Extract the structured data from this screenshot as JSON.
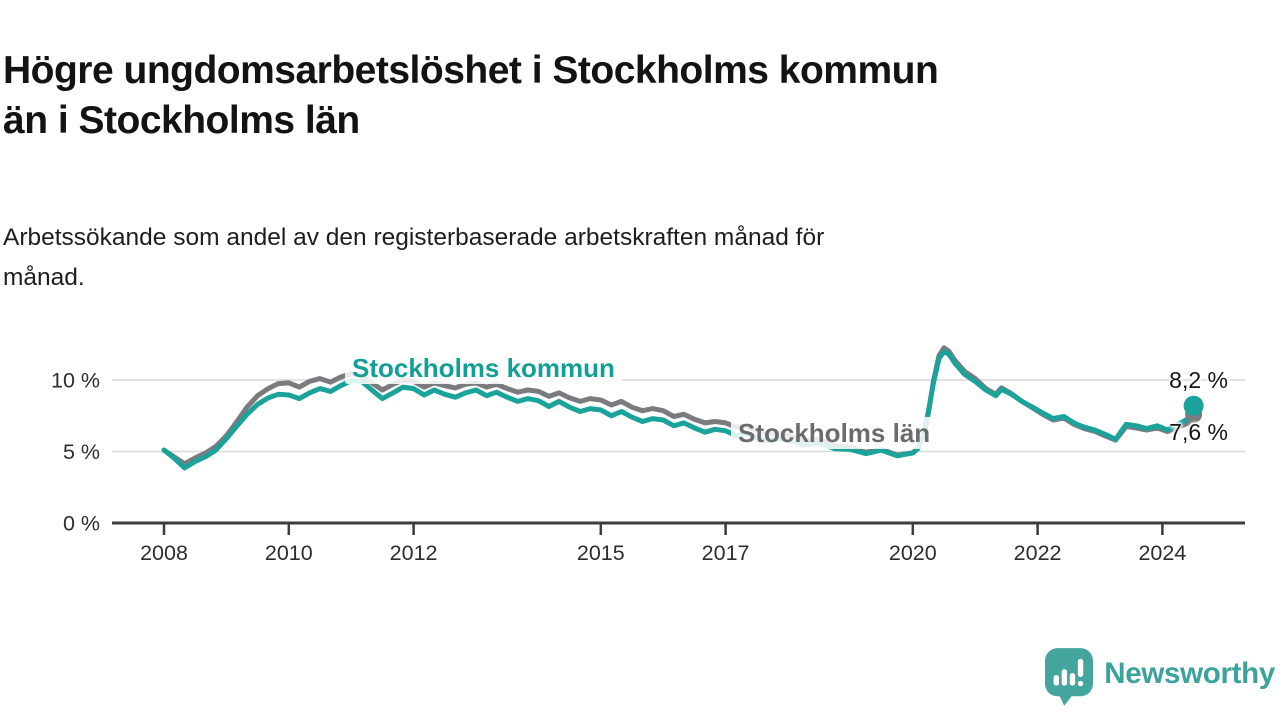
{
  "header": {
    "title_lines": [
      "Högre ungdomsarbetslöshet i Stockholms kommun",
      "än i Stockholms län"
    ],
    "subtitle_lines": [
      "Arbetssökande som andel av den registerbaserade arbetskraften månad för",
      "månad."
    ]
  },
  "footer": {
    "brand": "Newsworthy"
  },
  "colors": {
    "kommun": "#1aa39a",
    "lan": "#7b7b7f",
    "grid": "#d9d9d9",
    "axis": "#3c3c3c",
    "tick_text": "#2e2e2e",
    "brand_teal": "#44a59f"
  },
  "chart_data": {
    "type": "line",
    "title": "Högre ungdomsarbetslöshet i Stockholms kommun än i Stockholms län",
    "subtitle": "Arbetssökande som andel av den registerbaserade arbetskraften månad för månad.",
    "unit": "%",
    "grid": "horizontal",
    "legend_position": "inline-labels",
    "ylim": [
      0,
      12.8
    ],
    "xlim": [
      2007.2,
      2025.3
    ],
    "yticks": [
      {
        "value": 0,
        "label": "0 %"
      },
      {
        "value": 5,
        "label": "5 %"
      },
      {
        "value": 10,
        "label": "10 %"
      }
    ],
    "xticks": [
      {
        "value": 2008,
        "label": "2008"
      },
      {
        "value": 2010,
        "label": "2010"
      },
      {
        "value": 2012,
        "label": "2012"
      },
      {
        "value": 2015,
        "label": "2015"
      },
      {
        "value": 2017,
        "label": "2017"
      },
      {
        "value": 2020,
        "label": "2020"
      },
      {
        "value": 2022,
        "label": "2022"
      },
      {
        "value": 2024,
        "label": "2024"
      }
    ],
    "x": [
      2008.0,
      2008.17,
      2008.33,
      2008.5,
      2008.67,
      2008.83,
      2009.0,
      2009.17,
      2009.33,
      2009.5,
      2009.67,
      2009.83,
      2010.0,
      2010.17,
      2010.33,
      2010.5,
      2010.67,
      2010.83,
      2011.0,
      2011.17,
      2011.33,
      2011.5,
      2011.67,
      2011.83,
      2012.0,
      2012.17,
      2012.33,
      2012.5,
      2012.67,
      2012.83,
      2013.0,
      2013.17,
      2013.33,
      2013.5,
      2013.67,
      2013.83,
      2014.0,
      2014.17,
      2014.33,
      2014.5,
      2014.67,
      2014.83,
      2015.0,
      2015.17,
      2015.33,
      2015.5,
      2015.67,
      2015.83,
      2016.0,
      2016.17,
      2016.33,
      2016.5,
      2016.67,
      2016.83,
      2017.0,
      2017.17,
      2017.33,
      2017.5,
      2017.67,
      2017.83,
      2018.0,
      2018.25,
      2018.5,
      2018.75,
      2019.0,
      2019.25,
      2019.5,
      2019.75,
      2020.0,
      2020.08,
      2020.17,
      2020.25,
      2020.33,
      2020.42,
      2020.5,
      2020.58,
      2020.67,
      2020.83,
      2021.0,
      2021.17,
      2021.33,
      2021.42,
      2021.58,
      2021.75,
      2021.92,
      2022.08,
      2022.25,
      2022.42,
      2022.58,
      2022.75,
      2022.92,
      2023.08,
      2023.25,
      2023.42,
      2023.58,
      2023.75,
      2023.92,
      2024.08,
      2024.25,
      2024.42,
      2024.5
    ],
    "series": [
      {
        "name": "Stockholms kommun",
        "color": "#1aa39a",
        "end_label": "8,2 %",
        "end_value": 8.2,
        "values": [
          5.1,
          4.5,
          3.85,
          4.3,
          4.65,
          5.1,
          5.9,
          6.8,
          7.6,
          8.3,
          8.75,
          9.0,
          8.95,
          8.7,
          9.1,
          9.4,
          9.2,
          9.6,
          9.95,
          9.9,
          9.3,
          8.7,
          9.1,
          9.5,
          9.4,
          8.95,
          9.3,
          9.0,
          8.8,
          9.1,
          9.3,
          8.9,
          9.15,
          8.8,
          8.5,
          8.7,
          8.55,
          8.15,
          8.5,
          8.1,
          7.8,
          8.0,
          7.9,
          7.5,
          7.8,
          7.4,
          7.1,
          7.3,
          7.2,
          6.8,
          7.0,
          6.65,
          6.35,
          6.55,
          6.45,
          6.1,
          6.3,
          6.0,
          5.75,
          5.9,
          5.8,
          5.45,
          5.6,
          5.2,
          5.15,
          4.85,
          5.1,
          4.7,
          4.9,
          5.2,
          6.1,
          7.8,
          9.8,
          11.5,
          12.0,
          11.8,
          11.2,
          10.4,
          9.9,
          9.3,
          8.9,
          9.35,
          9.0,
          8.5,
          8.1,
          7.7,
          7.3,
          7.45,
          7.0,
          6.7,
          6.5,
          6.2,
          5.85,
          6.9,
          6.8,
          6.6,
          6.8,
          6.5,
          6.9,
          7.3,
          8.2
        ]
      },
      {
        "name": "Stockholms län",
        "color": "#7b7b7f",
        "end_label": "7,6 %",
        "end_value": 7.6,
        "values": [
          5.1,
          4.6,
          4.15,
          4.55,
          4.9,
          5.35,
          6.1,
          7.1,
          8.1,
          8.9,
          9.4,
          9.75,
          9.8,
          9.5,
          9.9,
          10.1,
          9.85,
          10.2,
          10.45,
          10.3,
          9.8,
          9.3,
          9.7,
          10.0,
          9.9,
          9.5,
          9.8,
          9.6,
          9.45,
          9.7,
          9.8,
          9.5,
          9.7,
          9.4,
          9.15,
          9.3,
          9.2,
          8.85,
          9.1,
          8.75,
          8.5,
          8.7,
          8.6,
          8.25,
          8.5,
          8.1,
          7.85,
          8.0,
          7.85,
          7.45,
          7.6,
          7.25,
          7.0,
          7.1,
          7.0,
          6.7,
          6.8,
          6.5,
          6.2,
          6.3,
          6.15,
          5.75,
          5.85,
          5.4,
          5.3,
          4.95,
          5.15,
          4.75,
          4.9,
          5.2,
          6.0,
          7.7,
          9.9,
          11.7,
          12.25,
          12.0,
          11.4,
          10.6,
          10.1,
          9.4,
          9.0,
          9.45,
          9.05,
          8.5,
          8.05,
          7.6,
          7.2,
          7.35,
          6.9,
          6.6,
          6.4,
          6.1,
          5.8,
          6.75,
          6.65,
          6.5,
          6.65,
          6.4,
          6.7,
          7.0,
          7.6
        ]
      }
    ]
  }
}
